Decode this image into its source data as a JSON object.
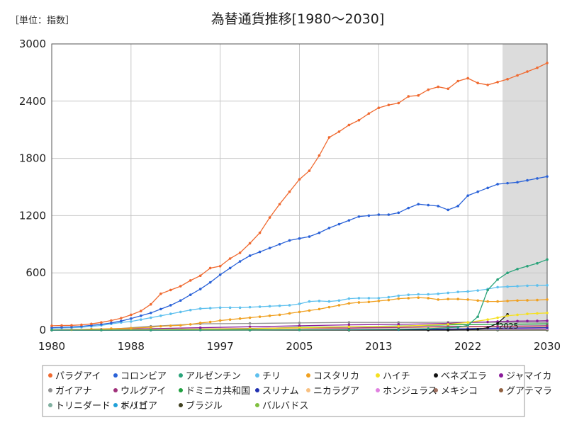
{
  "chart_data": {
    "type": "line",
    "title": "為替通貨推移[1980～2030]",
    "unit_label": "［単位：指数］",
    "x_ticks": [
      "1980",
      "1988",
      "1997",
      "2005",
      "2013",
      "2022",
      "2030"
    ],
    "y_ticks": [
      "0",
      "600",
      "1200",
      "1800",
      "2400",
      "3000"
    ],
    "xlim": [
      1980,
      2030
    ],
    "ylim": [
      0,
      3000
    ],
    "forecast_shade": [
      2025.5,
      2030
    ],
    "annotation": "2025",
    "grid": true,
    "legend_placement": "bottom",
    "series": [
      {
        "name": "パラグアイ",
        "color": "#f06a30",
        "x": [
          1980,
          1981,
          1982,
          1983,
          1984,
          1985,
          1986,
          1987,
          1988,
          1989,
          1990,
          1991,
          1992,
          1993,
          1994,
          1995,
          1996,
          1997,
          1998,
          1999,
          2000,
          2001,
          2002,
          2003,
          2004,
          2005,
          2006,
          2007,
          2008,
          2009,
          2010,
          2011,
          2012,
          2013,
          2014,
          2015,
          2016,
          2017,
          2018,
          2019,
          2020,
          2021,
          2022,
          2023,
          2024,
          2025,
          2026,
          2027,
          2028,
          2029,
          2030
        ],
        "values": [
          45,
          48,
          50,
          55,
          65,
          80,
          100,
          125,
          160,
          200,
          270,
          380,
          420,
          460,
          520,
          570,
          650,
          670,
          750,
          810,
          910,
          1020,
          1180,
          1320,
          1450,
          1580,
          1670,
          1830,
          2020,
          2080,
          2150,
          2200,
          2270,
          2330,
          2360,
          2380,
          2450,
          2460,
          2520,
          2550,
          2530,
          2610,
          2640,
          2590,
          2570,
          2600,
          2630,
          2670,
          2710,
          2750,
          2800
        ]
      },
      {
        "name": "コロンビア",
        "color": "#2a62d8",
        "x": [
          1980,
          1981,
          1982,
          1983,
          1984,
          1985,
          1986,
          1987,
          1988,
          1989,
          1990,
          1991,
          1992,
          1993,
          1994,
          1995,
          1996,
          1997,
          1998,
          1999,
          2000,
          2001,
          2002,
          2003,
          2004,
          2005,
          2006,
          2007,
          2008,
          2009,
          2010,
          2011,
          2012,
          2013,
          2014,
          2015,
          2016,
          2017,
          2018,
          2019,
          2020,
          2021,
          2022,
          2023,
          2024,
          2025,
          2026,
          2027,
          2028,
          2029,
          2030
        ],
        "values": [
          25,
          30,
          33,
          40,
          50,
          60,
          75,
          95,
          120,
          150,
          180,
          220,
          260,
          310,
          370,
          430,
          500,
          580,
          650,
          720,
          780,
          820,
          860,
          900,
          940,
          960,
          980,
          1020,
          1070,
          1110,
          1150,
          1190,
          1200,
          1210,
          1210,
          1230,
          1280,
          1320,
          1310,
          1300,
          1260,
          1300,
          1410,
          1450,
          1490,
          1530,
          1540,
          1550,
          1570,
          1590,
          1610
        ]
      },
      {
        "name": "アルゼンチン",
        "color": "#2aa37a",
        "x": [
          1980,
          1985,
          1990,
          1995,
          2000,
          2005,
          2010,
          2015,
          2018,
          2020,
          2021,
          2022,
          2023,
          2024,
          2025,
          2026,
          2027,
          2028,
          2029,
          2030
        ],
        "values": [
          0,
          0,
          0,
          1,
          1,
          3,
          4,
          8,
          15,
          25,
          30,
          50,
          140,
          420,
          530,
          600,
          640,
          670,
          700,
          740
        ]
      },
      {
        "name": "チリ",
        "color": "#5ec0ee",
        "x": [
          1980,
          1981,
          1982,
          1983,
          1984,
          1985,
          1986,
          1987,
          1988,
          1989,
          1990,
          1991,
          1992,
          1993,
          1994,
          1995,
          1996,
          1997,
          1998,
          1999,
          2000,
          2001,
          2002,
          2003,
          2004,
          2005,
          2006,
          2007,
          2008,
          2009,
          2010,
          2011,
          2012,
          2013,
          2014,
          2015,
          2016,
          2017,
          2018,
          2019,
          2020,
          2021,
          2022,
          2023,
          2024,
          2025,
          2026,
          2027,
          2028,
          2029,
          2030
        ],
        "values": [
          20,
          22,
          25,
          30,
          38,
          50,
          65,
          80,
          90,
          110,
          130,
          150,
          170,
          190,
          210,
          225,
          230,
          235,
          235,
          235,
          240,
          245,
          250,
          255,
          260,
          275,
          300,
          305,
          300,
          310,
          330,
          335,
          335,
          335,
          345,
          360,
          370,
          375,
          375,
          380,
          390,
          400,
          405,
          415,
          430,
          450,
          455,
          460,
          465,
          468,
          470
        ]
      },
      {
        "name": "コスタリカ",
        "color": "#f0a020",
        "x": [
          1980,
          1982,
          1984,
          1986,
          1988,
          1990,
          1991,
          1992,
          1993,
          1994,
          1995,
          1996,
          1997,
          1998,
          1999,
          2000,
          2001,
          2002,
          2003,
          2004,
          2005,
          2006,
          2007,
          2008,
          2009,
          2010,
          2011,
          2012,
          2013,
          2014,
          2015,
          2016,
          2017,
          2018,
          2019,
          2020,
          2021,
          2022,
          2023,
          2024,
          2025,
          2026,
          2027,
          2028,
          2029,
          2030
        ],
        "values": [
          2,
          4,
          10,
          15,
          20,
          30,
          40,
          45,
          50,
          60,
          75,
          85,
          100,
          110,
          120,
          130,
          140,
          150,
          160,
          175,
          190,
          205,
          220,
          240,
          260,
          280,
          290,
          295,
          305,
          315,
          330,
          335,
          340,
          335,
          320,
          325,
          325,
          320,
          310,
          300,
          300,
          305,
          310,
          312,
          315,
          320
        ]
      },
      {
        "name": "ハイチ",
        "color": "#f5e020",
        "x": [
          1980,
          1990,
          2000,
          2005,
          2010,
          2015,
          2020,
          2022,
          2024,
          2025,
          2026,
          2027,
          2028,
          2029,
          2030
        ],
        "values": [
          3,
          5,
          15,
          25,
          35,
          40,
          60,
          80,
          110,
          130,
          150,
          160,
          170,
          175,
          180
        ]
      },
      {
        "name": "ベネズエラ",
        "color": "#111111",
        "x": [
          1980,
          2000,
          2010,
          2018,
          2020,
          2022,
          2023,
          2024,
          2025,
          2026
        ],
        "values": [
          0,
          0,
          0,
          0,
          0,
          2,
          8,
          25,
          70,
          165
        ]
      },
      {
        "name": "ジャマイカ",
        "color": "#8a1a9a",
        "x": [
          1980,
          1985,
          1990,
          1995,
          2000,
          2005,
          2010,
          2015,
          2020,
          2022,
          2024,
          2025,
          2026,
          2027,
          2028,
          2029,
          2030
        ],
        "values": [
          3,
          8,
          15,
          25,
          35,
          45,
          55,
          60,
          70,
          80,
          85,
          90,
          92,
          94,
          95,
          96,
          98
        ]
      },
      {
        "name": "ガイアナ",
        "color": "#909090",
        "x": [
          1980,
          1985,
          1990,
          1995,
          2000,
          2005,
          2010,
          2015,
          2020,
          2025,
          2030
        ],
        "values": [
          1,
          3,
          40,
          65,
          70,
          75,
          80,
          80,
          82,
          82,
          82
        ]
      },
      {
        "name": "ウルグアイ",
        "color": "#a0307a",
        "x": [
          1980,
          1985,
          1990,
          1995,
          2000,
          2005,
          2010,
          2015,
          2020,
          2025,
          2030
        ],
        "values": [
          1,
          2,
          5,
          12,
          18,
          25,
          22,
          28,
          40,
          40,
          45
        ]
      },
      {
        "name": "ドミニカ共和国",
        "color": "#20a040",
        "x": [
          1980,
          1985,
          1990,
          1995,
          2000,
          2005,
          2010,
          2015,
          2020,
          2025,
          2030
        ],
        "values": [
          1,
          2,
          5,
          8,
          12,
          30,
          35,
          42,
          55,
          60,
          65
        ]
      },
      {
        "name": "スリナム",
        "color": "#2030b0",
        "x": [
          1980,
          1990,
          2000,
          2005,
          2010,
          2015,
          2020,
          2022,
          2025,
          2030
        ],
        "values": [
          0,
          0,
          1,
          2,
          3,
          5,
          10,
          15,
          20,
          25
        ]
      },
      {
        "name": "ニカラグア",
        "color": "#f8c080",
        "x": [
          1980,
          1985,
          1990,
          1995,
          2000,
          2005,
          2010,
          2015,
          2020,
          2025,
          2030
        ],
        "values": [
          0,
          0,
          2,
          5,
          10,
          15,
          20,
          25,
          30,
          35,
          38
        ]
      },
      {
        "name": "ホンジュラス",
        "color": "#e080e0",
        "x": [
          1980,
          1985,
          1990,
          1995,
          2000,
          2005,
          2010,
          2015,
          2020,
          2025,
          2030
        ],
        "values": [
          1,
          1,
          3,
          6,
          8,
          10,
          10,
          12,
          12,
          13,
          14
        ]
      },
      {
        "name": "メキシコ",
        "color": "#a07060",
        "x": [
          1980,
          1985,
          1990,
          1995,
          2000,
          2005,
          2010,
          2015,
          2020,
          2025,
          2030
        ],
        "values": [
          0,
          0,
          1,
          3,
          5,
          7,
          8,
          10,
          12,
          12,
          13
        ]
      },
      {
        "name": "グアテマラ",
        "color": "#906040",
        "x": [
          1980,
          1985,
          1990,
          1995,
          2000,
          2005,
          2010,
          2015,
          2020,
          2025,
          2030
        ],
        "values": [
          2,
          2,
          4,
          6,
          7,
          8,
          8,
          8,
          8,
          8,
          8
        ]
      },
      {
        "name": "トリニダード・トバゴ",
        "color": "#80b0a0",
        "x": [
          1980,
          1985,
          1990,
          1995,
          2000,
          2005,
          2010,
          2015,
          2020,
          2025,
          2030
        ],
        "values": [
          2,
          3,
          4,
          5,
          6,
          6,
          6,
          6,
          7,
          7,
          7
        ]
      },
      {
        "name": "ボリビア",
        "color": "#20a0d8",
        "x": [
          1980,
          1985,
          1990,
          1995,
          2000,
          2005,
          2010,
          2015,
          2020,
          2025,
          2030
        ],
        "values": [
          0,
          0,
          2,
          3,
          4,
          5,
          5,
          5,
          5,
          5,
          6
        ]
      },
      {
        "name": "ブラジル",
        "color": "#404020",
        "x": [
          1980,
          1990,
          2000,
          2010,
          2020,
          2025,
          2030
        ],
        "values": [
          0,
          0,
          0,
          0,
          0,
          0,
          0
        ]
      },
      {
        "name": "バルバドス",
        "color": "#80c040",
        "x": [
          1980,
          1990,
          2000,
          2010,
          2020,
          2025,
          2030
        ],
        "values": [
          1,
          1,
          1,
          1,
          1,
          1,
          1
        ]
      }
    ]
  }
}
